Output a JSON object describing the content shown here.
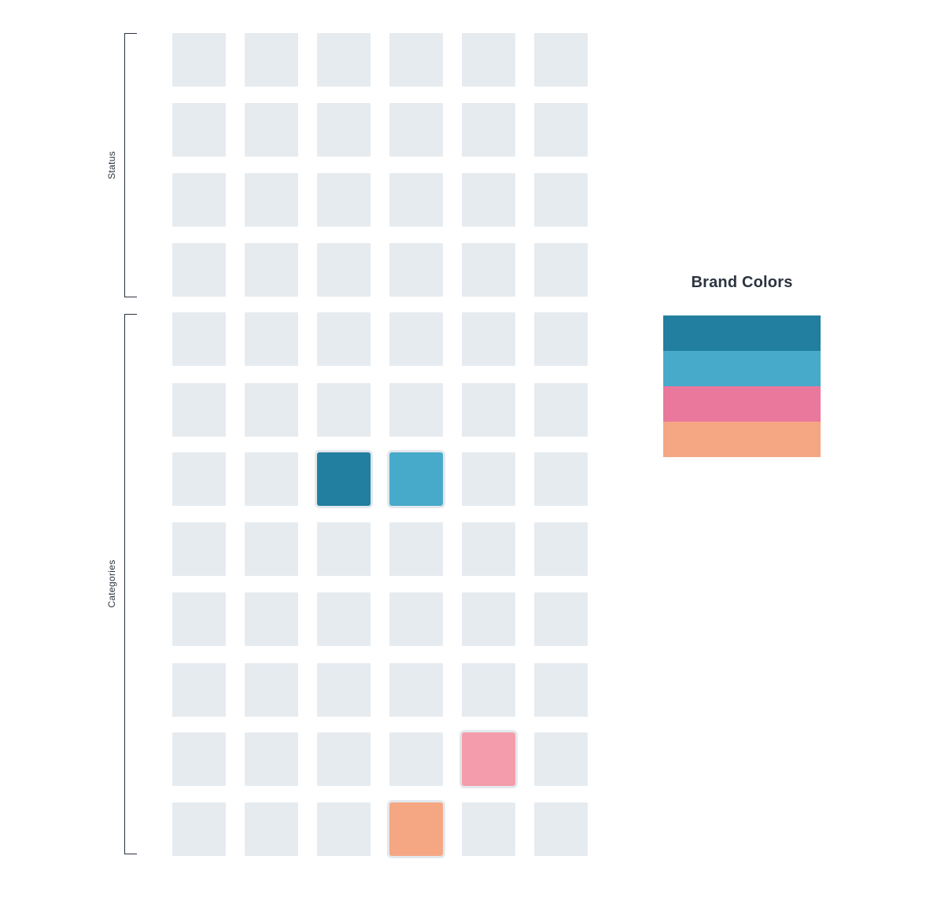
{
  "labels": {
    "status": "Status",
    "categories": "Categories"
  },
  "grid": {
    "rows": 12,
    "cols": 6,
    "status_rows": 4,
    "tile_color": "#e6ebf0",
    "highlights": [
      {
        "row": 7,
        "col": 3,
        "color": "#227f9f"
      },
      {
        "row": 7,
        "col": 4,
        "color": "#47aaca"
      },
      {
        "row": 11,
        "col": 5,
        "color": "#f49cab"
      },
      {
        "row": 12,
        "col": 4,
        "color": "#f5a784"
      }
    ]
  },
  "brand": {
    "title": "Brand Colors",
    "swatches": [
      "#227f9f",
      "#47aaca",
      "#ea789c",
      "#f5a784"
    ]
  }
}
